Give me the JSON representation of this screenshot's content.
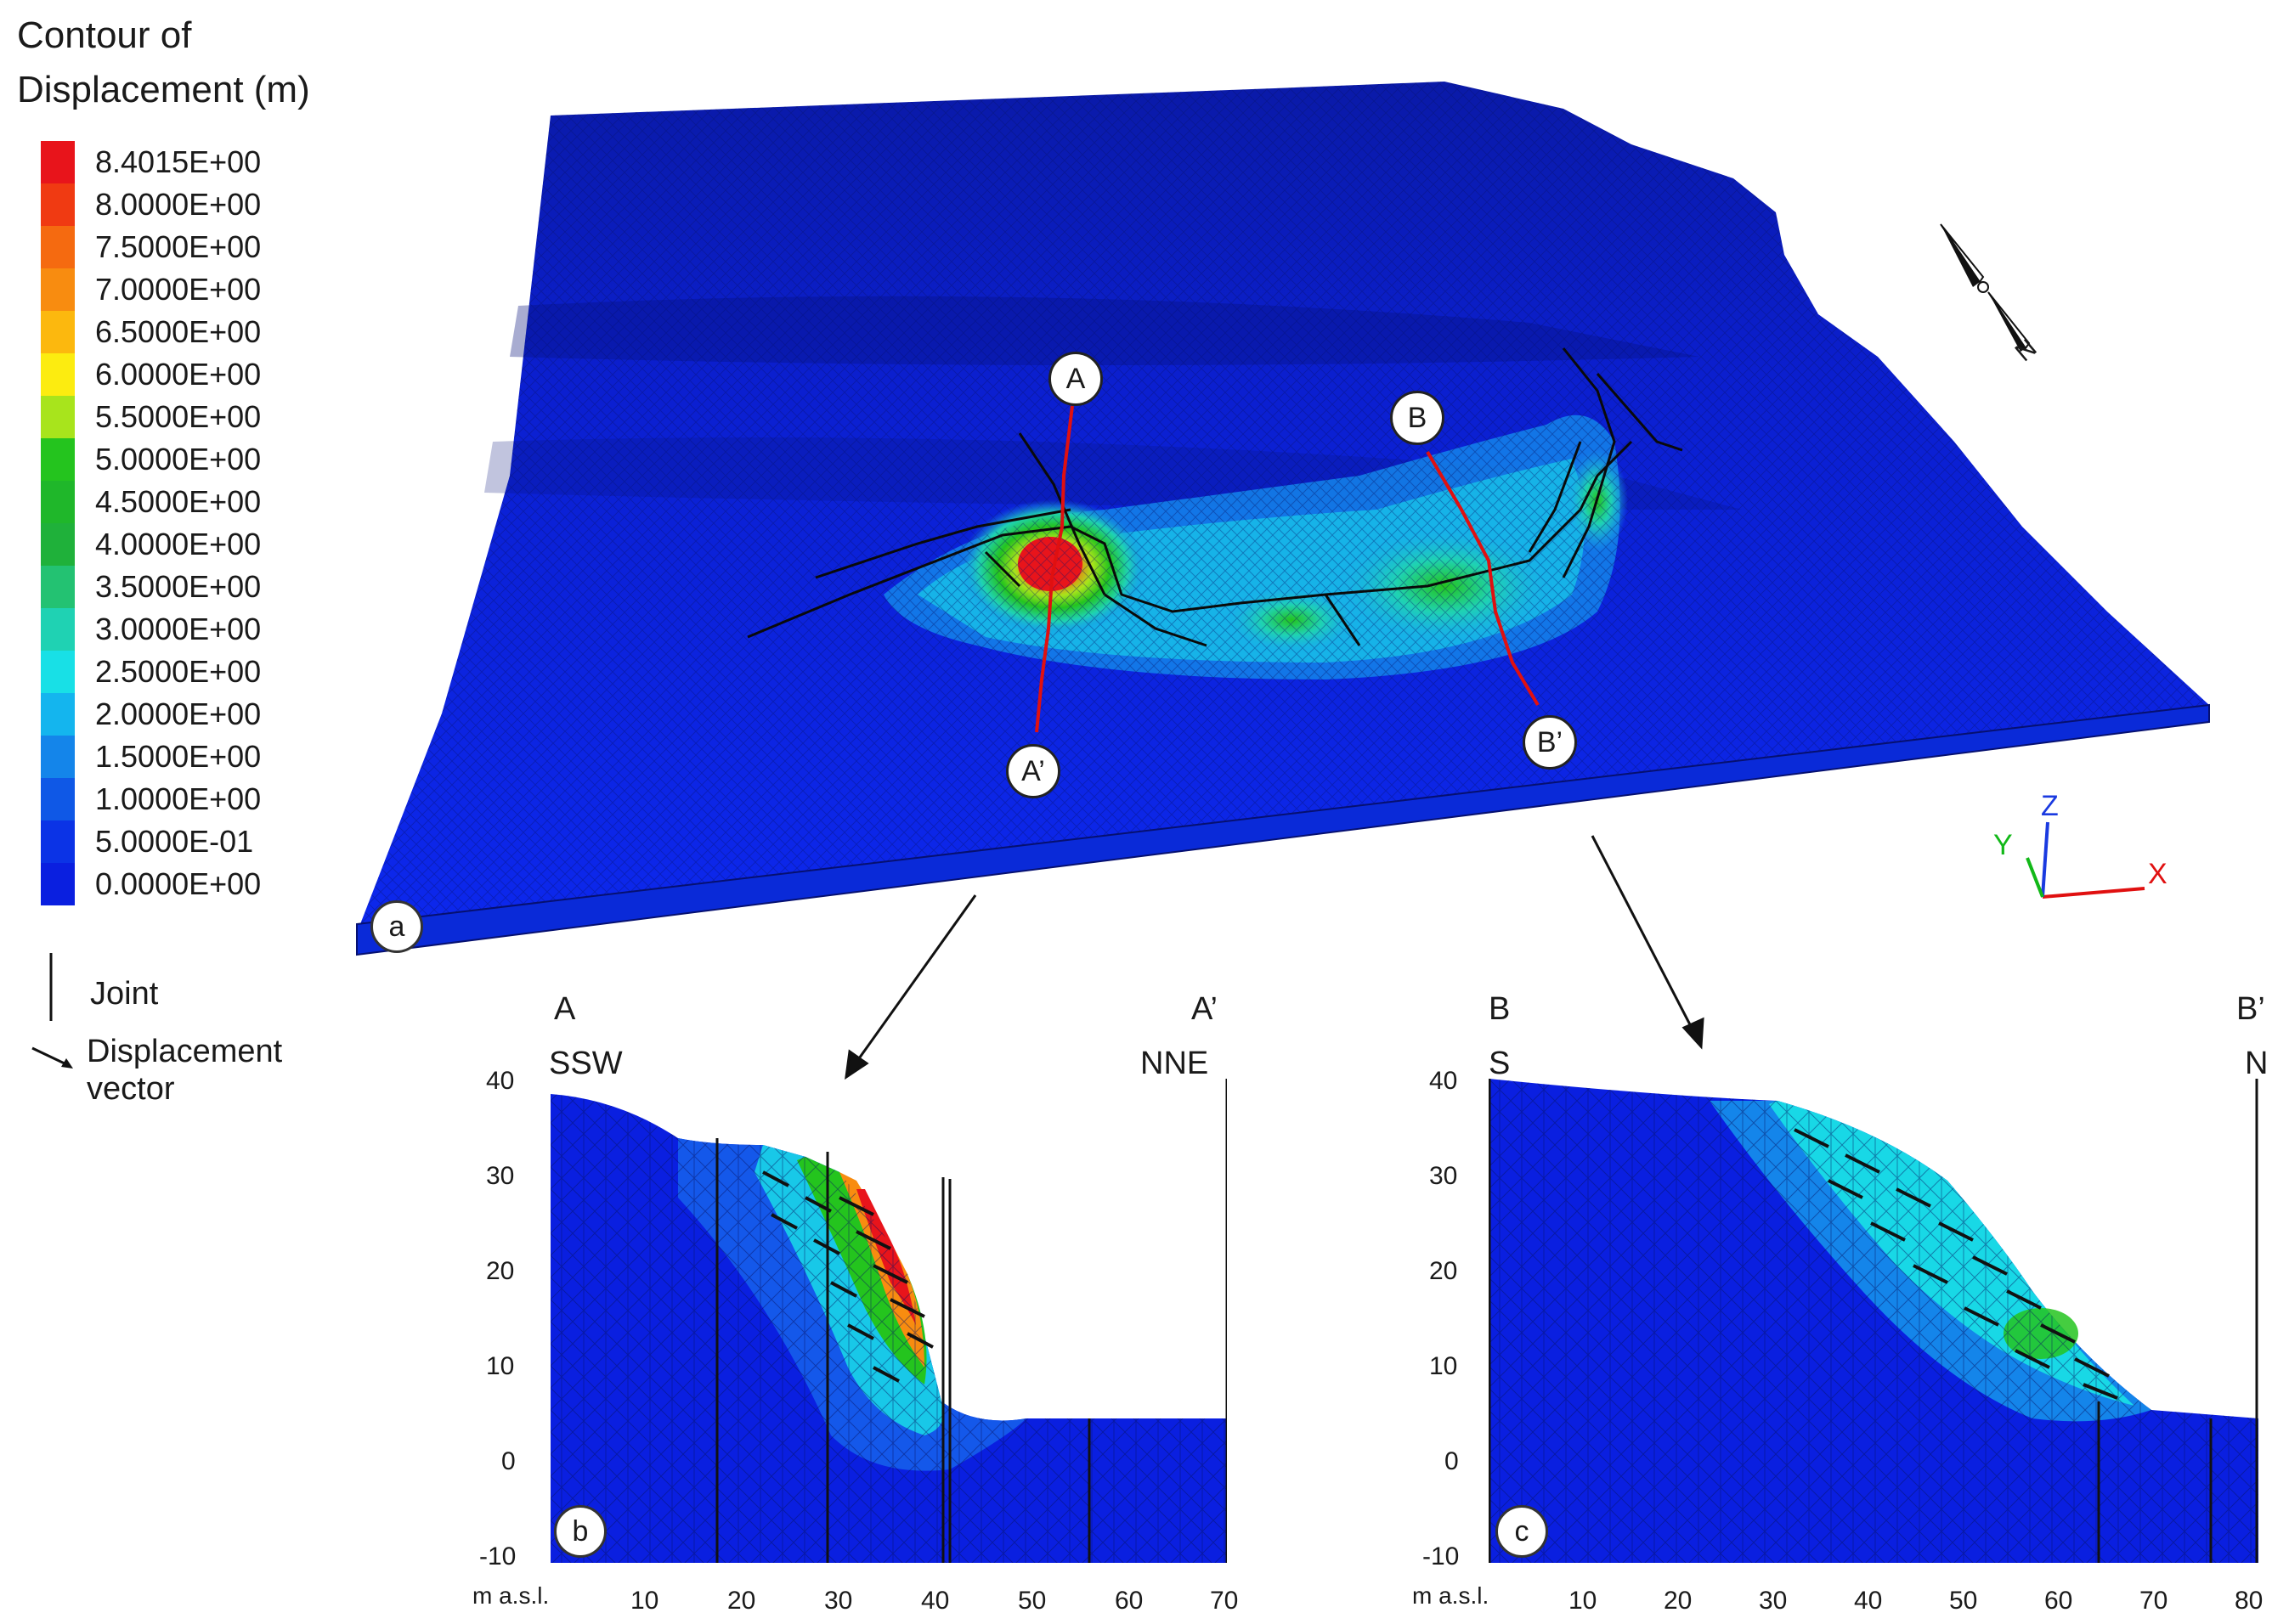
{
  "legend": {
    "title_line1": "Contour of",
    "title_line2": "Displacement (m)",
    "levels": [
      "8.4015E+00",
      "8.0000E+00",
      "7.5000E+00",
      "7.0000E+00",
      "6.5000E+00",
      "6.0000E+00",
      "5.5000E+00",
      "5.0000E+00",
      "4.5000E+00",
      "4.0000E+00",
      "3.5000E+00",
      "3.0000E+00",
      "2.5000E+00",
      "2.0000E+00",
      "1.5000E+00",
      "1.0000E+00",
      "5.0000E-01",
      "0.0000E+00"
    ],
    "colors": [
      "#e8141b",
      "#f03a12",
      "#f56a10",
      "#f88c10",
      "#fcb80e",
      "#fcec10",
      "#a8e41c",
      "#24c41e",
      "#1fb72a",
      "#1fb13a",
      "#23c272",
      "#1fd2b3",
      "#18e0e6",
      "#14b5ee",
      "#1485ea",
      "#0f58e6",
      "#0b33e6",
      "#0a1fe0"
    ],
    "joint_label": "Joint",
    "vector_label_line1": "Displacement",
    "vector_label_line2": "vector"
  },
  "panels": {
    "a": "a",
    "b": "b",
    "c": "c"
  },
  "section_markers": {
    "A": "A",
    "A_prime": "A’",
    "B": "B",
    "B_prime": "B’"
  },
  "axis_triad": {
    "x": "X",
    "y": "Y",
    "z": "Z"
  },
  "north_label": "N",
  "section_b": {
    "left_name": "A",
    "right_name": "A’",
    "left_dir": "SSW",
    "right_dir": "NNE",
    "y_unit": "m a.s.l.",
    "yticks": [
      "40",
      "30",
      "20",
      "10",
      "0",
      "-10"
    ],
    "xticks": [
      "10",
      "20",
      "30",
      "40",
      "50",
      "60",
      "70"
    ]
  },
  "section_c": {
    "left_name": "B",
    "right_name": "B’",
    "left_dir": "S",
    "right_dir": "N",
    "y_unit": "m a.s.l.",
    "yticks": [
      "40",
      "30",
      "20",
      "10",
      "0",
      "-10"
    ],
    "xticks": [
      "10",
      "20",
      "30",
      "40",
      "50",
      "60",
      "70",
      "80"
    ]
  },
  "colors": {
    "base_blue": "#0a1fe0",
    "section_line": "#e01010"
  }
}
